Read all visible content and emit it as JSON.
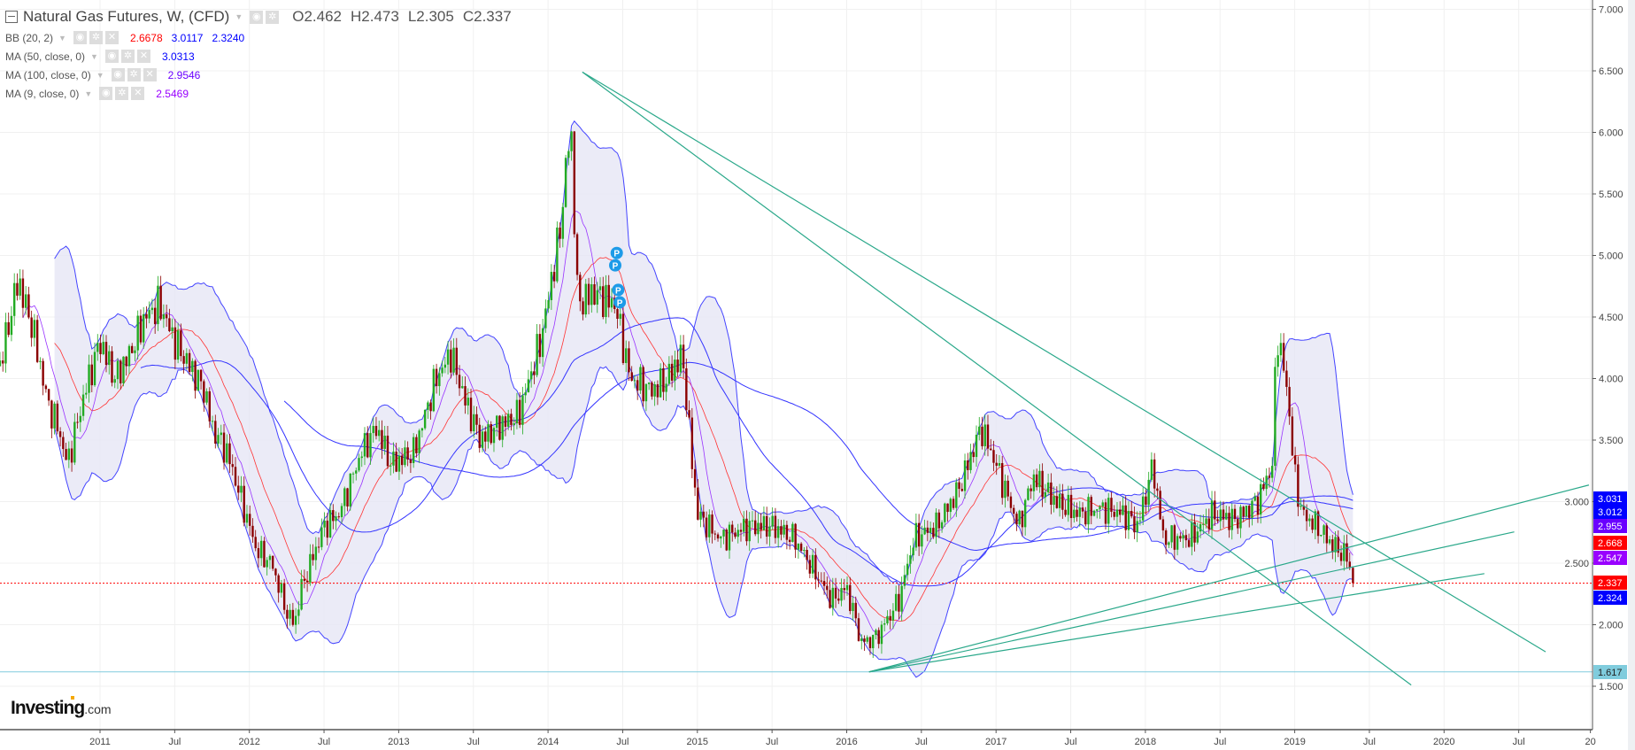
{
  "header": {
    "title": "Natural Gas Futures, W, (CFD)",
    "ohlc": {
      "open": "O2.462",
      "high": "H2.473",
      "low": "L2.305",
      "close": "C2.337"
    }
  },
  "indicators": [
    {
      "label": "BB (20, 2)",
      "values": [
        {
          "v": "2.6678",
          "color": "#ff0000"
        },
        {
          "v": "3.0117",
          "color": "#0000ff"
        },
        {
          "v": "2.3240",
          "color": "#0000ff"
        }
      ]
    },
    {
      "label": "MA (50, close, 0)",
      "values": [
        {
          "v": "3.0313",
          "color": "#0000ff"
        }
      ]
    },
    {
      "label": "MA (100, close, 0)",
      "values": [
        {
          "v": "2.9546",
          "color": "#6a00ff"
        }
      ]
    },
    {
      "label": "MA (9, close, 0)",
      "values": [
        {
          "v": "2.5469",
          "color": "#9900ff"
        }
      ]
    }
  ],
  "logo": {
    "text": "Investing",
    "suffix": ".com"
  },
  "chart_data": {
    "type": "candlestick",
    "interval": "weekly",
    "xlim": [
      2010.33,
      2020.98
    ],
    "ylim": [
      1.5,
      7.0
    ],
    "y_ticks": [
      "1.500",
      "2.000",
      "2.500",
      "3.000",
      "3.500",
      "4.000",
      "4.500",
      "5.000",
      "5.500",
      "6.000",
      "6.500",
      "7.000"
    ],
    "x_ticks": [
      {
        "t": 2011,
        "label": "2011"
      },
      {
        "t": 2011.5,
        "label": "Jul"
      },
      {
        "t": 2012,
        "label": "2012"
      },
      {
        "t": 2012.5,
        "label": "Jul"
      },
      {
        "t": 2013,
        "label": "2013"
      },
      {
        "t": 2013.5,
        "label": "Jul"
      },
      {
        "t": 2014,
        "label": "2014"
      },
      {
        "t": 2014.5,
        "label": "Jul"
      },
      {
        "t": 2015,
        "label": "2015"
      },
      {
        "t": 2015.5,
        "label": "Jul"
      },
      {
        "t": 2016,
        "label": "2016"
      },
      {
        "t": 2016.5,
        "label": "Jul"
      },
      {
        "t": 2017,
        "label": "2017"
      },
      {
        "t": 2017.5,
        "label": "Jul"
      },
      {
        "t": 2018,
        "label": "2018"
      },
      {
        "t": 2018.5,
        "label": "Jul"
      },
      {
        "t": 2019,
        "label": "2019"
      },
      {
        "t": 2019.5,
        "label": "Jul"
      },
      {
        "t": 2020,
        "label": "2020"
      },
      {
        "t": 2020.5,
        "label": "Jul"
      },
      {
        "t": 2020.98,
        "label": "20"
      }
    ],
    "grid": true,
    "approx_close_path": [
      [
        2010.33,
        4.1
      ],
      [
        2010.45,
        4.8
      ],
      [
        2010.55,
        4.4
      ],
      [
        2010.65,
        3.8
      ],
      [
        2010.72,
        3.6
      ],
      [
        2010.78,
        3.3
      ],
      [
        2010.9,
        3.9
      ],
      [
        2011.0,
        4.3
      ],
      [
        2011.1,
        4.0
      ],
      [
        2011.2,
        4.2
      ],
      [
        2011.3,
        4.5
      ],
      [
        2011.4,
        4.6
      ],
      [
        2011.5,
        4.3
      ],
      [
        2011.6,
        4.1
      ],
      [
        2011.7,
        3.9
      ],
      [
        2011.75,
        3.6
      ],
      [
        2011.85,
        3.4
      ],
      [
        2011.95,
        3.0
      ],
      [
        2012.05,
        2.6
      ],
      [
        2012.15,
        2.5
      ],
      [
        2012.25,
        2.1
      ],
      [
        2012.3,
        2.0
      ],
      [
        2012.35,
        2.3
      ],
      [
        2012.5,
        2.8
      ],
      [
        2012.6,
        2.9
      ],
      [
        2012.75,
        3.4
      ],
      [
        2012.85,
        3.6
      ],
      [
        2012.95,
        3.3
      ],
      [
        2013.1,
        3.4
      ],
      [
        2013.25,
        4.0
      ],
      [
        2013.35,
        4.2
      ],
      [
        2013.45,
        3.8
      ],
      [
        2013.55,
        3.5
      ],
      [
        2013.65,
        3.6
      ],
      [
        2013.8,
        3.7
      ],
      [
        2013.95,
        4.3
      ],
      [
        2014.08,
        5.2
      ],
      [
        2014.15,
        6.1
      ],
      [
        2014.2,
        4.6
      ],
      [
        2014.3,
        4.7
      ],
      [
        2014.45,
        4.6
      ],
      [
        2014.55,
        4.0
      ],
      [
        2014.7,
        3.9
      ],
      [
        2014.8,
        4.0
      ],
      [
        2014.9,
        4.2
      ],
      [
        2014.95,
        3.5
      ],
      [
        2015.0,
        2.9
      ],
      [
        2015.15,
        2.7
      ],
      [
        2015.35,
        2.8
      ],
      [
        2015.5,
        2.8
      ],
      [
        2015.65,
        2.7
      ],
      [
        2015.8,
        2.4
      ],
      [
        2015.9,
        2.2
      ],
      [
        2016.0,
        2.3
      ],
      [
        2016.1,
        1.85
      ],
      [
        2016.2,
        1.9
      ],
      [
        2016.35,
        2.2
      ],
      [
        2016.45,
        2.7
      ],
      [
        2016.6,
        2.8
      ],
      [
        2016.75,
        3.1
      ],
      [
        2016.9,
        3.6
      ],
      [
        2017.0,
        3.3
      ],
      [
        2017.15,
        2.8
      ],
      [
        2017.25,
        3.2
      ],
      [
        2017.4,
        3.0
      ],
      [
        2017.55,
        2.9
      ],
      [
        2017.7,
        2.95
      ],
      [
        2017.85,
        2.9
      ],
      [
        2017.95,
        2.8
      ],
      [
        2018.05,
        3.3
      ],
      [
        2018.12,
        2.7
      ],
      [
        2018.3,
        2.7
      ],
      [
        2018.45,
        2.9
      ],
      [
        2018.6,
        2.85
      ],
      [
        2018.75,
        3.0
      ],
      [
        2018.85,
        3.3
      ],
      [
        2018.88,
        4.4
      ],
      [
        2018.95,
        3.9
      ],
      [
        2019.0,
        3.2
      ],
      [
        2019.05,
        2.9
      ],
      [
        2019.15,
        2.8
      ],
      [
        2019.25,
        2.65
      ],
      [
        2019.35,
        2.55
      ],
      [
        2019.39,
        2.337
      ]
    ],
    "last_candle": {
      "open": 2.462,
      "high": 2.473,
      "low": 2.305,
      "close": 2.337
    },
    "price_labels": [
      {
        "v": "3.031",
        "color": "#0000ff"
      },
      {
        "v": "3.012",
        "color": "#0000ff"
      },
      {
        "v": "2.955",
        "color": "#6a00ff"
      },
      {
        "v": "2.668",
        "color": "#ff0000"
      },
      {
        "v": "2.547",
        "color": "#9900ff"
      },
      {
        "v": "2.337",
        "color": "#ff0000"
      },
      {
        "v": "2.324",
        "color": "#0000ff"
      },
      {
        "v": "1.617",
        "color": "#80ccdd"
      }
    ],
    "horizontal_lines": [
      {
        "price": 2.337,
        "color": "#ff0000",
        "style": "dotted"
      },
      {
        "price": 1.617,
        "color": "#80ccdd",
        "style": "solid"
      }
    ],
    "trend_lines": [
      {
        "from": [
          2014.23,
          6.49
        ],
        "to": [
          2020.68,
          1.78
        ]
      },
      {
        "from": [
          2014.23,
          6.49
        ],
        "to": [
          2019.78,
          1.51
        ]
      },
      {
        "from": [
          2016.15,
          1.617
        ],
        "to": [
          2020.97,
          3.135
        ]
      },
      {
        "from": [
          2016.15,
          1.617
        ],
        "to": [
          2020.47,
          2.754
        ]
      },
      {
        "from": [
          2016.15,
          1.617
        ],
        "to": [
          2020.27,
          2.415
        ]
      }
    ],
    "event_markers": [
      {
        "t": 2014.46,
        "p": 5.02,
        "label": "P"
      },
      {
        "t": 2014.45,
        "p": 4.92,
        "label": "P"
      },
      {
        "t": 2014.47,
        "p": 4.72,
        "label": "P"
      },
      {
        "t": 2014.48,
        "p": 4.62,
        "label": "P"
      }
    ],
    "colors": {
      "up": "#22aa22",
      "down": "#8b0000",
      "bb_band": "#4444ff",
      "bb_fill": "#e6e6f5",
      "bb_mid": "#ff3333",
      "ma50": "#3333ff",
      "ma100": "#3333ff",
      "ma9": "#9933ff",
      "trend": "#2aa88a"
    }
  }
}
